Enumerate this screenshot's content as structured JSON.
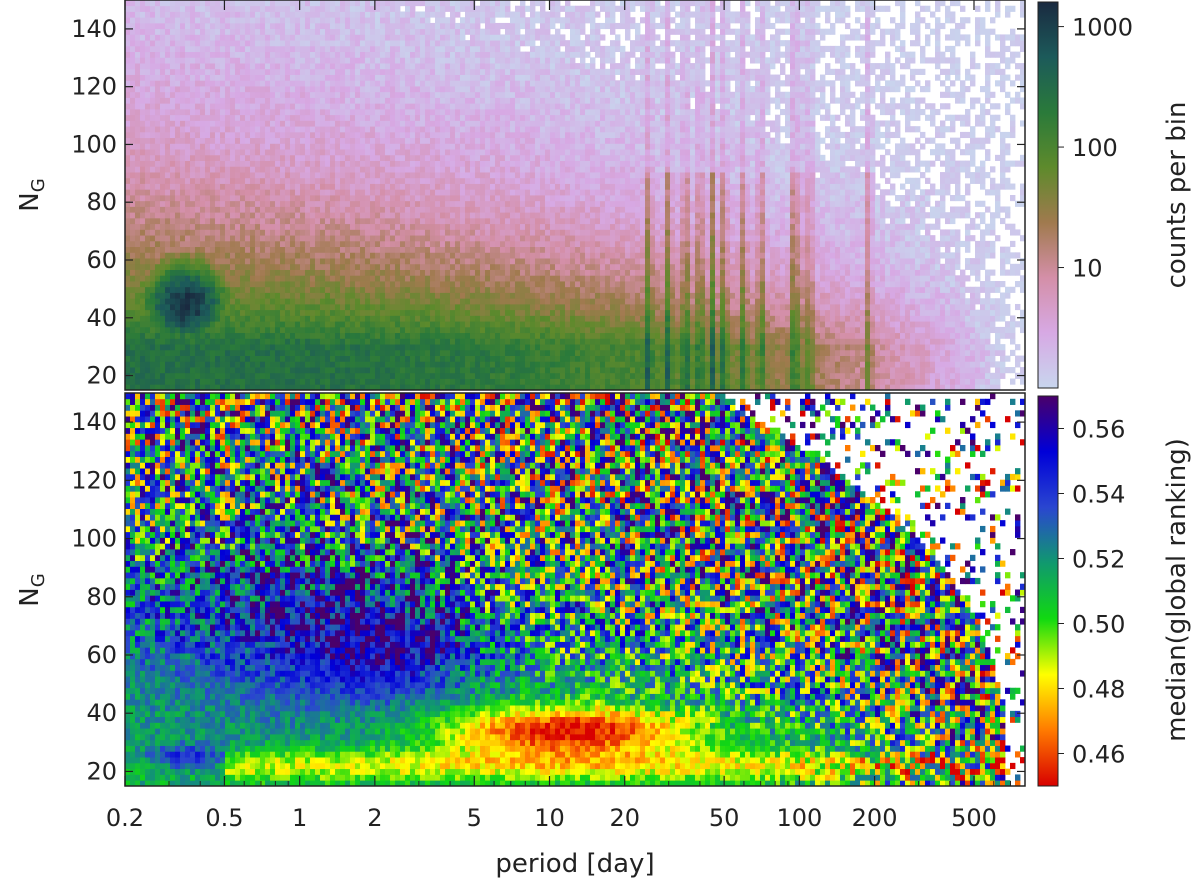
{
  "chart_data": [
    {
      "type": "heatmap",
      "panel": "top",
      "xlabel": "",
      "ylabel": "N",
      "ylabel_sub": "G",
      "x_scale": "log",
      "xlim": [
        0.2,
        800
      ],
      "ylim": [
        15,
        150
      ],
      "yticks": [
        20,
        40,
        60,
        80,
        100,
        120,
        140
      ],
      "colorbar": {
        "label": "counts per bin",
        "scale": "log",
        "range": [
          1,
          1600
        ],
        "ticks": [
          10,
          100,
          1000
        ],
        "colors": [
          "#c8d6ee",
          "#d7a9e4",
          "#d48fa8",
          "#a07a4e",
          "#5e8a2c",
          "#2a7a3a",
          "#1c5a5a",
          "#1a2a40"
        ]
      },
      "features": {
        "dense_core": {
          "period": 0.35,
          "N_G": 45,
          "counts": 1500
        },
        "secondary_band": {
          "N_G": 25,
          "counts": 300
        },
        "aliasing_lines_period": [
          25,
          30,
          35,
          40,
          45,
          50,
          60,
          70,
          95,
          100,
          110,
          190
        ]
      }
    },
    {
      "type": "heatmap",
      "panel": "bottom",
      "xlabel": "period [day]",
      "ylabel": "N",
      "ylabel_sub": "G",
      "x_scale": "log",
      "xlim": [
        0.2,
        800
      ],
      "ylim": [
        15,
        150
      ],
      "xticks": [
        0.2,
        0.5,
        1,
        2,
        5,
        10,
        20,
        50,
        100,
        200,
        500
      ],
      "xtick_labels": [
        "0.2",
        "0.5",
        "1",
        "2",
        "5",
        "10",
        "20",
        "50",
        "100",
        "200",
        "500"
      ],
      "yticks": [
        20,
        40,
        60,
        80,
        100,
        120,
        140
      ],
      "colorbar": {
        "label": "median(global ranking)",
        "range": [
          0.45,
          0.57
        ],
        "ticks": [
          0.46,
          0.48,
          0.5,
          0.52,
          0.54,
          0.56
        ],
        "tick_labels": [
          "0.46",
          "0.48",
          "0.50",
          "0.52",
          "0.54",
          "0.56"
        ],
        "colors": [
          "#d80000",
          "#ff7a00",
          "#ffff00",
          "#11d911",
          "#10996e",
          "#2a46d0",
          "#0000d8",
          "#4a006a"
        ]
      },
      "features": {
        "red_region": {
          "period_range": [
            4,
            40
          ],
          "N_G_range": [
            28,
            40
          ],
          "median": 0.46
        },
        "blue_region": {
          "period_range": [
            0.25,
            4
          ],
          "N_G_range": [
            55,
            100
          ],
          "median": 0.54
        },
        "yellow_band": {
          "period_range": [
            0.5,
            30
          ],
          "N_G_range": [
            18,
            28
          ],
          "median": 0.49
        }
      }
    }
  ]
}
